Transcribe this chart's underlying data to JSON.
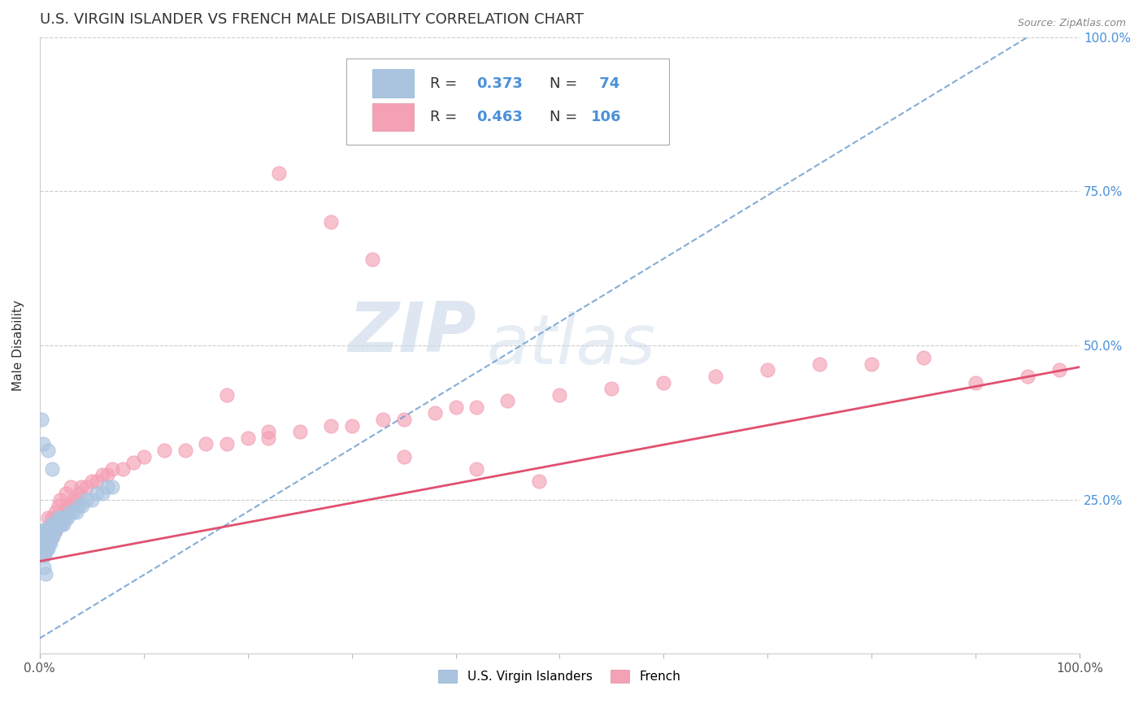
{
  "title": "U.S. VIRGIN ISLANDER VS FRENCH MALE DISABILITY CORRELATION CHART",
  "source": "Source: ZipAtlas.com",
  "ylabel": "Male Disability",
  "xlim": [
    0.0,
    1.0
  ],
  "ylim": [
    0.0,
    1.0
  ],
  "background_color": "#ffffff",
  "grid_color": "#cccccc",
  "watermark_text": "ZIPatlas",
  "color_vi": "#aac4e0",
  "color_fr": "#f4a0b5",
  "color_vi_line": "#6699cc",
  "color_fr_line": "#e05070",
  "vi_R": 0.373,
  "vi_N": 74,
  "fr_R": 0.463,
  "fr_N": 106,
  "vi_x": [
    0.001,
    0.001,
    0.002,
    0.002,
    0.002,
    0.002,
    0.003,
    0.003,
    0.003,
    0.003,
    0.003,
    0.004,
    0.004,
    0.004,
    0.004,
    0.005,
    0.005,
    0.005,
    0.005,
    0.005,
    0.006,
    0.006,
    0.006,
    0.006,
    0.007,
    0.007,
    0.007,
    0.007,
    0.008,
    0.008,
    0.008,
    0.009,
    0.009,
    0.009,
    0.01,
    0.01,
    0.01,
    0.011,
    0.011,
    0.012,
    0.012,
    0.013,
    0.013,
    0.014,
    0.014,
    0.015,
    0.015,
    0.016,
    0.017,
    0.018,
    0.019,
    0.02,
    0.021,
    0.022,
    0.023,
    0.025,
    0.027,
    0.029,
    0.032,
    0.035,
    0.038,
    0.041,
    0.045,
    0.05,
    0.055,
    0.06,
    0.065,
    0.07,
    0.002,
    0.003,
    0.008,
    0.012,
    0.004,
    0.006
  ],
  "vi_y": [
    0.17,
    0.19,
    0.18,
    0.2,
    0.17,
    0.19,
    0.18,
    0.2,
    0.17,
    0.19,
    0.16,
    0.18,
    0.2,
    0.17,
    0.19,
    0.18,
    0.2,
    0.17,
    0.19,
    0.16,
    0.18,
    0.2,
    0.17,
    0.19,
    0.18,
    0.2,
    0.17,
    0.19,
    0.18,
    0.2,
    0.17,
    0.19,
    0.18,
    0.2,
    0.19,
    0.21,
    0.18,
    0.2,
    0.19,
    0.2,
    0.19,
    0.2,
    0.19,
    0.2,
    0.21,
    0.2,
    0.21,
    0.21,
    0.21,
    0.22,
    0.21,
    0.22,
    0.21,
    0.22,
    0.21,
    0.22,
    0.22,
    0.23,
    0.23,
    0.23,
    0.24,
    0.24,
    0.25,
    0.25,
    0.26,
    0.26,
    0.27,
    0.27,
    0.38,
    0.34,
    0.33,
    0.3,
    0.14,
    0.13
  ],
  "fr_x": [
    0.001,
    0.002,
    0.003,
    0.004,
    0.004,
    0.005,
    0.005,
    0.006,
    0.006,
    0.007,
    0.007,
    0.008,
    0.008,
    0.009,
    0.009,
    0.01,
    0.01,
    0.011,
    0.011,
    0.012,
    0.013,
    0.013,
    0.014,
    0.015,
    0.015,
    0.016,
    0.017,
    0.018,
    0.019,
    0.02,
    0.021,
    0.022,
    0.023,
    0.025,
    0.027,
    0.029,
    0.032,
    0.035,
    0.038,
    0.04,
    0.045,
    0.05,
    0.055,
    0.06,
    0.065,
    0.07,
    0.08,
    0.09,
    0.1,
    0.12,
    0.14,
    0.16,
    0.18,
    0.2,
    0.22,
    0.25,
    0.28,
    0.3,
    0.33,
    0.35,
    0.38,
    0.4,
    0.42,
    0.45,
    0.5,
    0.55,
    0.6,
    0.65,
    0.7,
    0.75,
    0.8,
    0.85,
    0.9,
    0.95,
    0.98,
    0.003,
    0.004,
    0.005,
    0.006,
    0.007,
    0.008,
    0.01,
    0.012,
    0.015,
    0.018,
    0.02,
    0.025,
    0.03,
    0.025,
    0.02,
    0.015,
    0.01,
    0.008,
    0.006,
    0.004,
    0.003,
    0.003,
    0.004,
    0.23,
    0.28,
    0.32,
    0.18,
    0.22,
    0.35,
    0.42,
    0.48
  ],
  "fr_y": [
    0.17,
    0.18,
    0.17,
    0.19,
    0.17,
    0.18,
    0.2,
    0.18,
    0.19,
    0.18,
    0.2,
    0.18,
    0.19,
    0.19,
    0.2,
    0.19,
    0.2,
    0.19,
    0.2,
    0.19,
    0.2,
    0.21,
    0.2,
    0.2,
    0.21,
    0.21,
    0.21,
    0.22,
    0.21,
    0.22,
    0.22,
    0.22,
    0.23,
    0.23,
    0.24,
    0.24,
    0.25,
    0.25,
    0.26,
    0.27,
    0.27,
    0.28,
    0.28,
    0.29,
    0.29,
    0.3,
    0.3,
    0.31,
    0.32,
    0.33,
    0.33,
    0.34,
    0.34,
    0.35,
    0.35,
    0.36,
    0.37,
    0.37,
    0.38,
    0.38,
    0.39,
    0.4,
    0.4,
    0.41,
    0.42,
    0.43,
    0.44,
    0.45,
    0.46,
    0.47,
    0.47,
    0.48,
    0.44,
    0.45,
    0.46,
    0.18,
    0.19,
    0.17,
    0.18,
    0.19,
    0.2,
    0.21,
    0.22,
    0.23,
    0.24,
    0.25,
    0.26,
    0.27,
    0.23,
    0.22,
    0.21,
    0.2,
    0.22,
    0.18,
    0.19,
    0.2,
    0.16,
    0.17,
    0.78,
    0.7,
    0.64,
    0.42,
    0.36,
    0.32,
    0.3,
    0.28
  ],
  "vi_line_x0": 0.0,
  "vi_line_y0": 0.025,
  "vi_line_x1": 0.95,
  "vi_line_y1": 1.0,
  "fr_line_x0": 0.0,
  "fr_line_y0": 0.15,
  "fr_line_x1": 1.0,
  "fr_line_y1": 0.465
}
